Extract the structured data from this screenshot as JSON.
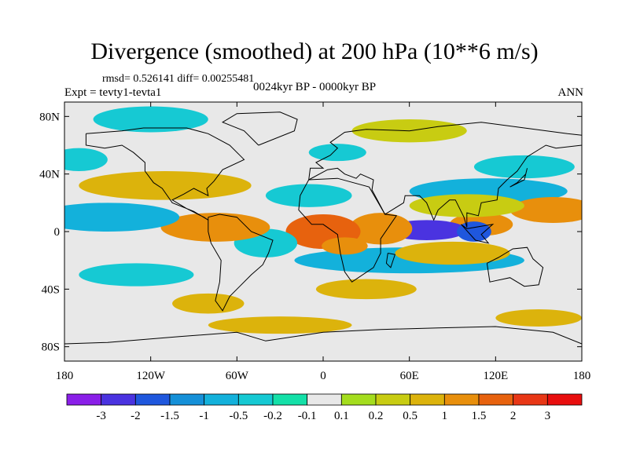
{
  "chart_data": {
    "type": "heatmap",
    "title": "Divergence (smoothed) at 200 hPa (10**6 m/s)",
    "stats": "rmsd= 0.526141 diff= 0.00255481",
    "experiment": "Expt = tevty1-tevta1",
    "period": "0024kyr BP - 0000kyr BP",
    "season": "ANN",
    "x_range": [
      -180,
      180
    ],
    "y_range": [
      -90,
      90
    ],
    "x_ticks": [
      {
        "value": -180,
        "label": "180"
      },
      {
        "value": -120,
        "label": "120W"
      },
      {
        "value": -60,
        "label": "60W"
      },
      {
        "value": 0,
        "label": "0"
      },
      {
        "value": 60,
        "label": "60E"
      },
      {
        "value": 120,
        "label": "120E"
      },
      {
        "value": 180,
        "label": "180"
      }
    ],
    "y_ticks": [
      {
        "value": 80,
        "label": "80N"
      },
      {
        "value": 40,
        "label": "40N"
      },
      {
        "value": 0,
        "label": "0"
      },
      {
        "value": -40,
        "label": "40S"
      },
      {
        "value": -80,
        "label": "80S"
      }
    ],
    "colorbar": {
      "colors": [
        "#8a1fe8",
        "#4a33e0",
        "#1f57dd",
        "#1590d8",
        "#13b1db",
        "#16c9d3",
        "#14e0a8",
        "#e8e8e8",
        "#a4dd1e",
        "#c8cc12",
        "#dcb30c",
        "#e88f0c",
        "#e7620e",
        "#e83716",
        "#e80e0e"
      ],
      "labels": [
        "-3",
        "-2",
        "-1.5",
        "-1",
        "-0.5",
        "-0.2",
        "-0.1",
        "0.1",
        "0.2",
        "0.5",
        "1",
        "1.5",
        "2",
        "3"
      ]
    },
    "anomalies": [
      {
        "lon": 115,
        "lat": 28,
        "rx": 55,
        "ry": 9,
        "value": -0.7
      },
      {
        "lon": 160,
        "lat": 15,
        "rx": 30,
        "ry": 9,
        "value": 1.2
      },
      {
        "lon": 110,
        "lat": 5,
        "rx": 22,
        "ry": 8,
        "value": 1.4
      },
      {
        "lon": 72,
        "lat": 1,
        "rx": 28,
        "ry": 7,
        "value": -2.2
      },
      {
        "lon": 105,
        "lat": 0,
        "rx": 12,
        "ry": 7,
        "value": -1.6
      },
      {
        "lon": 60,
        "lat": -20,
        "rx": 80,
        "ry": 9,
        "value": -0.7
      },
      {
        "lon": 90,
        "lat": -15,
        "rx": 40,
        "ry": 8,
        "value": 0.6
      },
      {
        "lon": 100,
        "lat": 18,
        "rx": 40,
        "ry": 8,
        "value": 0.4
      },
      {
        "lon": 40,
        "lat": 2,
        "rx": 22,
        "ry": 11,
        "value": 1.2
      },
      {
        "lon": 0,
        "lat": 0,
        "rx": 26,
        "ry": 12,
        "value": 1.6
      },
      {
        "lon": 15,
        "lat": -10,
        "rx": 16,
        "ry": 6,
        "value": 1.0
      },
      {
        "lon": -40,
        "lat": -8,
        "rx": 22,
        "ry": 10,
        "value": -0.4
      },
      {
        "lon": -75,
        "lat": 3,
        "rx": 38,
        "ry": 10,
        "value": 1.0
      },
      {
        "lon": -150,
        "lat": 10,
        "rx": 50,
        "ry": 10,
        "value": -0.6
      },
      {
        "lon": -130,
        "lat": -30,
        "rx": 40,
        "ry": 8,
        "value": -0.4
      },
      {
        "lon": -110,
        "lat": 32,
        "rx": 60,
        "ry": 10,
        "value": 0.8
      },
      {
        "lon": -10,
        "lat": 25,
        "rx": 30,
        "ry": 8,
        "value": -0.5
      },
      {
        "lon": 10,
        "lat": 55,
        "rx": 20,
        "ry": 6,
        "value": -0.5
      },
      {
        "lon": -120,
        "lat": 78,
        "rx": 40,
        "ry": 9,
        "value": -0.4
      },
      {
        "lon": 60,
        "lat": 70,
        "rx": 40,
        "ry": 8,
        "value": 0.3
      },
      {
        "lon": -30,
        "lat": -65,
        "rx": 50,
        "ry": 6,
        "value": 0.6
      },
      {
        "lon": 150,
        "lat": -60,
        "rx": 30,
        "ry": 6,
        "value": 0.5
      },
      {
        "lon": -80,
        "lat": -50,
        "rx": 25,
        "ry": 7,
        "value": 0.5
      },
      {
        "lon": 30,
        "lat": -40,
        "rx": 35,
        "ry": 7,
        "value": 0.8
      },
      {
        "lon": 140,
        "lat": 45,
        "rx": 35,
        "ry": 8,
        "value": -0.5
      },
      {
        "lon": -170,
        "lat": 50,
        "rx": 20,
        "ry": 8,
        "value": -0.5
      }
    ]
  }
}
